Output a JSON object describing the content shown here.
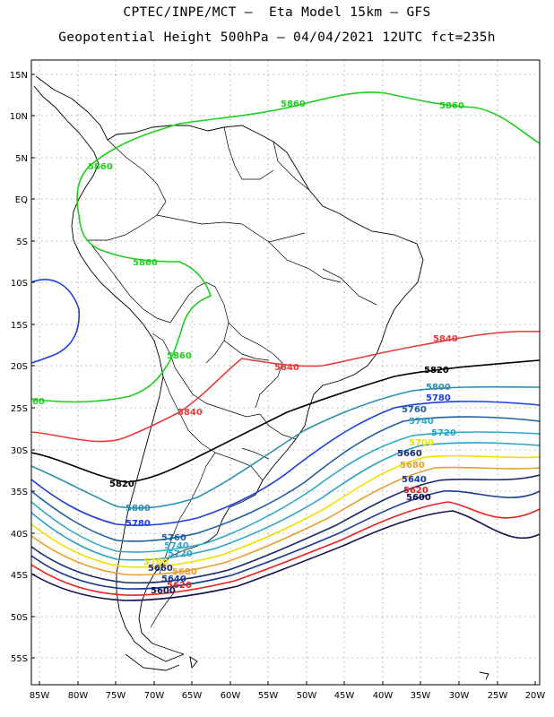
{
  "header": {
    "line1": "CPTEC/INPE/MCT –  Eta Model 15km – GFS",
    "line2": "Geopotential Height 500hPa – 04/04/2021 12UTC fct=235h"
  },
  "axes": {
    "lat_labels": [
      "15N",
      "10N",
      "5N",
      "EQ",
      "5S",
      "10S",
      "15S",
      "20S",
      "25S",
      "30S",
      "35S",
      "40S",
      "45S",
      "50S",
      "55S"
    ],
    "lon_labels": [
      "85W",
      "80W",
      "75W",
      "70W",
      "65W",
      "60W",
      "55W",
      "50W",
      "45W",
      "40W",
      "35W",
      "30W",
      "25W",
      "20W"
    ]
  },
  "contours": [
    {
      "value": "5860",
      "color": "#1fcf1f"
    },
    {
      "value": "5840",
      "color": "#e83a3a"
    },
    {
      "value": "5820",
      "color": "#000000"
    },
    {
      "value": "5800",
      "color": "#2a8fb0"
    },
    {
      "value": "5780",
      "color": "#1c3fe0"
    },
    {
      "value": "5760",
      "color": "#1f5fa0"
    },
    {
      "value": "5740",
      "color": "#30a8c8"
    },
    {
      "value": "5720",
      "color": "#2aa0c8"
    },
    {
      "value": "5700",
      "color": "#f0e000"
    },
    {
      "value": "5680",
      "color": "#e8a030"
    },
    {
      "value": "5660",
      "color": "#1a2a70"
    },
    {
      "value": "5640",
      "color": "#183890"
    },
    {
      "value": "5620",
      "color": "#e82020"
    },
    {
      "value": "5600",
      "color": "#101050"
    }
  ],
  "labels_extra": {
    "partial_5860": "60"
  }
}
